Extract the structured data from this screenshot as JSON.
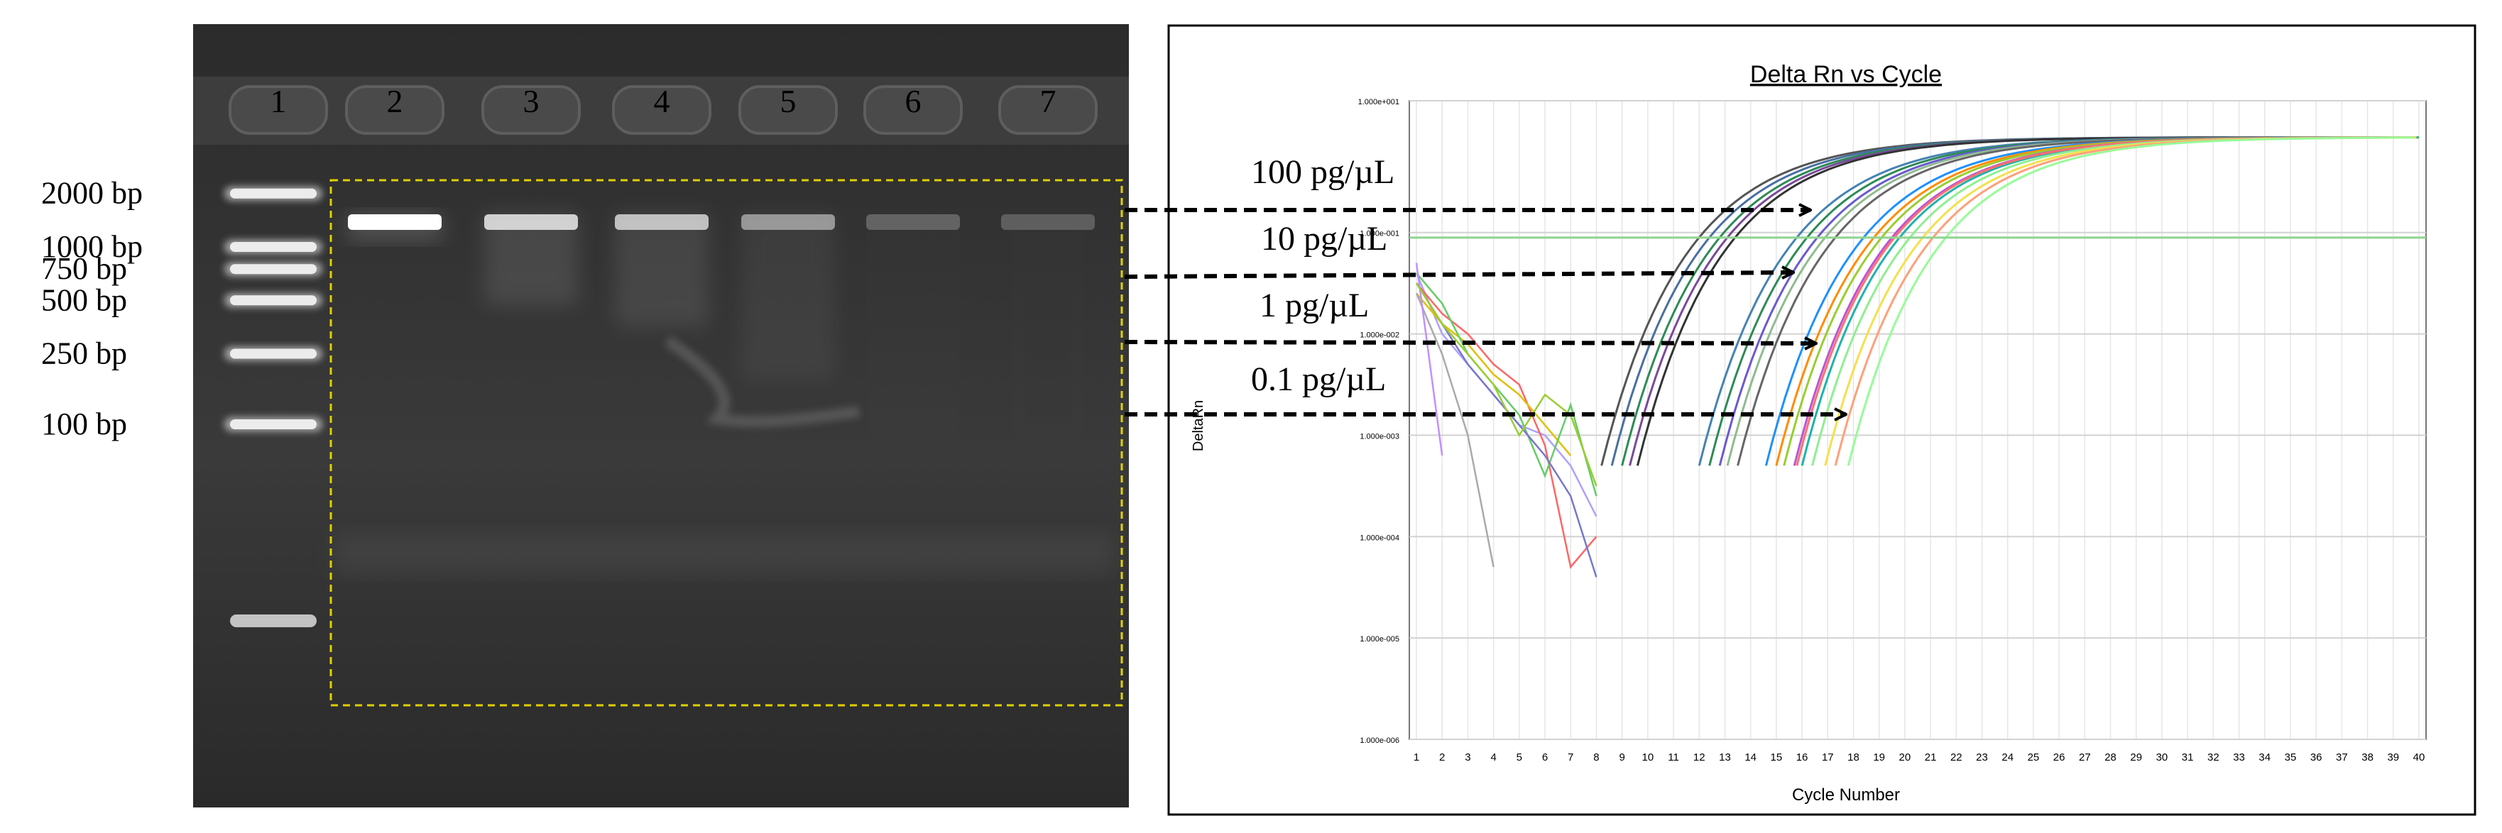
{
  "gel": {
    "lane_numbers": [
      "1",
      "2",
      "3",
      "4",
      "5",
      "6",
      "7"
    ],
    "ladder_labels": [
      "2000 bp",
      "1000 bp",
      "750 bp",
      "500 bp",
      "250 bp",
      "100 bp"
    ],
    "ladder_sizes_bp": [
      2000,
      1000,
      750,
      500,
      250,
      100
    ],
    "sample_band_intensity": [
      1.0,
      0.7,
      0.6,
      0.35,
      0.05,
      0.02
    ],
    "selection_box_color": "#e0d000"
  },
  "arrows": {
    "labels": [
      "100 pg/µL",
      "10 pg/µL",
      "1 pg/µL",
      "0.1 pg/µL"
    ],
    "color": "#000000"
  },
  "chart_data": {
    "type": "line",
    "title": "Delta Rn vs Cycle",
    "xlabel": "Cycle Number",
    "ylabel": "DeltaRn",
    "x_ticks": [
      1,
      2,
      3,
      4,
      5,
      6,
      7,
      8,
      9,
      10,
      11,
      12,
      13,
      14,
      15,
      16,
      17,
      18,
      19,
      20,
      21,
      22,
      23,
      24,
      25,
      26,
      27,
      28,
      29,
      30,
      31,
      32,
      33,
      34,
      35,
      36,
      37,
      38,
      39,
      40
    ],
    "y_scale": "log",
    "y_ticks": [
      "1.000e-006",
      "1.000e-005",
      "1.000e-004",
      "1.000e-003",
      "1.000e-002",
      "1.000e-001",
      "1.000e+001"
    ],
    "xlim": [
      1,
      40
    ],
    "grid": true,
    "threshold_log10": -1.05,
    "groups": [
      {
        "concentration": "100 pg/µL",
        "curve_starts": [
          8.2,
          8.6,
          9.0,
          9.3,
          9.6
        ],
        "colors": [
          "#555555",
          "#4a6fa5",
          "#2e8b57",
          "#7a4a9a",
          "#333333"
        ]
      },
      {
        "concentration": "10 pg/µL",
        "curve_starts": [
          12.0,
          12.4,
          12.8,
          13.1,
          13.5
        ],
        "colors": [
          "#4682b4",
          "#2e8b57",
          "#6a5acd",
          "#8fbc8f",
          "#666666"
        ]
      },
      {
        "concentration": "1 pg/µL",
        "curve_starts": [
          14.6,
          15.0,
          15.3,
          15.7,
          16.0
        ],
        "colors": [
          "#1e90ff",
          "#ff8c00",
          "#9acd32",
          "#ba55d3",
          "#20b2aa"
        ]
      },
      {
        "concentration": "0.1 pg/µL",
        "curve_starts": [
          15.8,
          16.4,
          16.9,
          17.3,
          17.8
        ],
        "colors": [
          "#ff6f6f",
          "#90ee90",
          "#f4e04d",
          "#ffa07a",
          "#98fb98"
        ]
      }
    ],
    "plateau_log10": -0.06,
    "noise_series": [
      {
        "color": "#b0a0ff",
        "values": [
          [
            1,
            -1.4
          ],
          [
            2,
            -2.0
          ],
          [
            3,
            -2.3
          ],
          [
            4,
            -2.6
          ],
          [
            5,
            -2.9
          ],
          [
            6,
            -3.0
          ],
          [
            7,
            -3.3
          ],
          [
            8,
            -3.8
          ]
        ]
      },
      {
        "color": "#ff6666",
        "values": [
          [
            1,
            -1.5
          ],
          [
            2,
            -1.8
          ],
          [
            3,
            -2.0
          ],
          [
            4,
            -2.3
          ],
          [
            5,
            -2.5
          ],
          [
            6,
            -3.1
          ],
          [
            7,
            -4.3
          ],
          [
            8,
            -4.0
          ]
        ]
      },
      {
        "color": "#e0c000",
        "values": [
          [
            1,
            -1.6
          ],
          [
            2,
            -1.9
          ],
          [
            3,
            -2.1
          ],
          [
            4,
            -2.4
          ],
          [
            5,
            -2.6
          ],
          [
            6,
            -2.9
          ],
          [
            7,
            -3.2
          ]
        ]
      },
      {
        "color": "#66cc66",
        "values": [
          [
            1,
            -1.4
          ],
          [
            2,
            -1.7
          ],
          [
            3,
            -2.2
          ],
          [
            4,
            -2.5
          ],
          [
            5,
            -2.8
          ],
          [
            6,
            -3.4
          ],
          [
            7,
            -2.7
          ],
          [
            8,
            -3.6
          ]
        ]
      },
      {
        "color": "#7777cc",
        "values": [
          [
            1,
            -1.5
          ],
          [
            2,
            -1.9
          ],
          [
            3,
            -2.3
          ],
          [
            4,
            -2.6
          ],
          [
            5,
            -2.9
          ],
          [
            6,
            -3.2
          ],
          [
            7,
            -3.6
          ],
          [
            8,
            -4.4
          ]
        ]
      },
      {
        "color": "#aaaaaa",
        "values": [
          [
            1,
            -1.6
          ],
          [
            2,
            -2.2
          ],
          [
            3,
            -3.0
          ],
          [
            4,
            -4.3
          ]
        ]
      },
      {
        "color": "#c090ff",
        "values": [
          [
            1,
            -1.3
          ],
          [
            2,
            -3.2
          ]
        ]
      },
      {
        "color": "#9acd32",
        "values": [
          [
            1,
            -1.5
          ],
          [
            2,
            -1.9
          ],
          [
            3,
            -2.2
          ],
          [
            4,
            -2.5
          ],
          [
            5,
            -3.0
          ],
          [
            6,
            -2.6
          ],
          [
            7,
            -2.8
          ],
          [
            8,
            -3.5
          ]
        ]
      }
    ]
  }
}
